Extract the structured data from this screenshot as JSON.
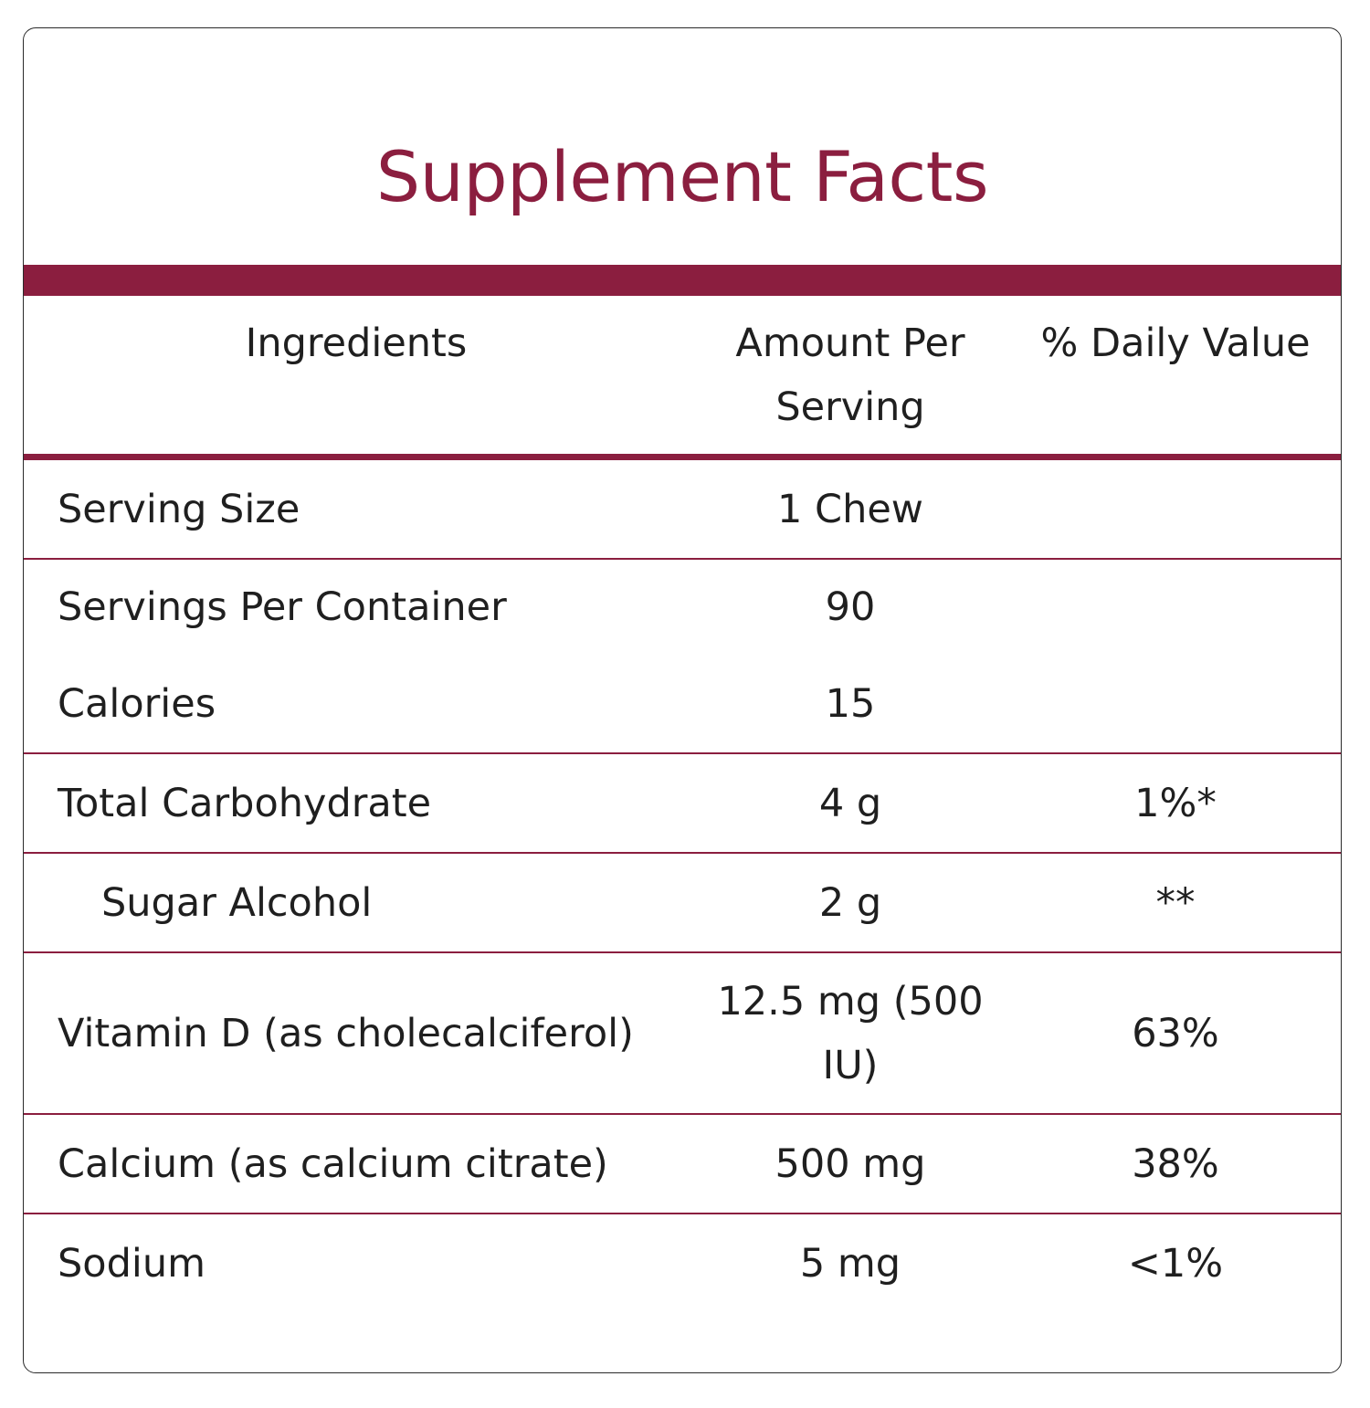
{
  "title": "Supplement Facts",
  "columns": {
    "ingredients": "Ingredients",
    "amount": "Amount Per Serving",
    "daily_value": "% Daily Value"
  },
  "rows": [
    {
      "name": "Serving Size",
      "amount": "1 Chew",
      "dv": ""
    },
    {
      "name": "Servings Per Container",
      "amount": "90",
      "dv": ""
    },
    {
      "name": "Calories",
      "amount": "15",
      "dv": ""
    },
    {
      "name": "Total Carbohydrate",
      "amount": "4 g",
      "dv": "1%*"
    },
    {
      "name": "Sugar Alcohol",
      "amount": "2 g",
      "dv": "**"
    },
    {
      "name": "Vitamin D (as cholecalciferol)",
      "amount": "12.5 mg (500 IU)",
      "dv": "63%"
    },
    {
      "name": "Calcium (as calcium citrate)",
      "amount": "500 mg",
      "dv": "38%"
    },
    {
      "name": "Sodium",
      "amount": "5 mg",
      "dv": "<1%"
    }
  ],
  "colors": {
    "accent": "#8b1e3f",
    "text": "#1f1f1f",
    "border": "#2b2b2b"
  }
}
